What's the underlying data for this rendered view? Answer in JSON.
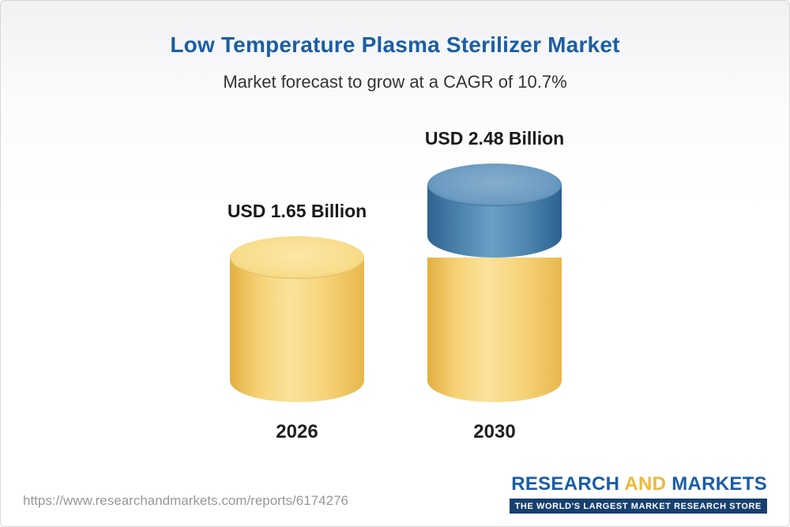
{
  "header": {
    "title": "Low Temperature Plasma Sterilizer Market",
    "subtitle": "Market forecast to grow at a CAGR of 10.7%"
  },
  "chart_data": {
    "type": "bar",
    "title": "Low Temperature Plasma Sterilizer Market",
    "subtitle": "Market forecast to grow at a CAGR of 10.7%",
    "cagr_percent": 10.7,
    "unit": "USD Billion",
    "categories": [
      "2026",
      "2030"
    ],
    "values": [
      1.65,
      2.48
    ],
    "value_labels": [
      "USD 1.65 Billion",
      "USD 2.48 Billion"
    ],
    "series_note": "2030 bar shows base value (yellow) plus growth over 2026 (blue)",
    "ylim": [
      0,
      2.6
    ],
    "grid": false,
    "legend": "none",
    "colors": {
      "base_segment": "#f3cd6b",
      "growth_segment": "#4d84ae",
      "title_text": "#1b5ea6"
    }
  },
  "footer": {
    "url": "https://www.researchandmarkets.com/reports/6174276",
    "logo": {
      "word1": "RESEARCH ",
      "word2": "AND",
      "word3": " MARKETS",
      "tagline": "THE WORLD'S LARGEST MARKET RESEARCH STORE"
    }
  }
}
